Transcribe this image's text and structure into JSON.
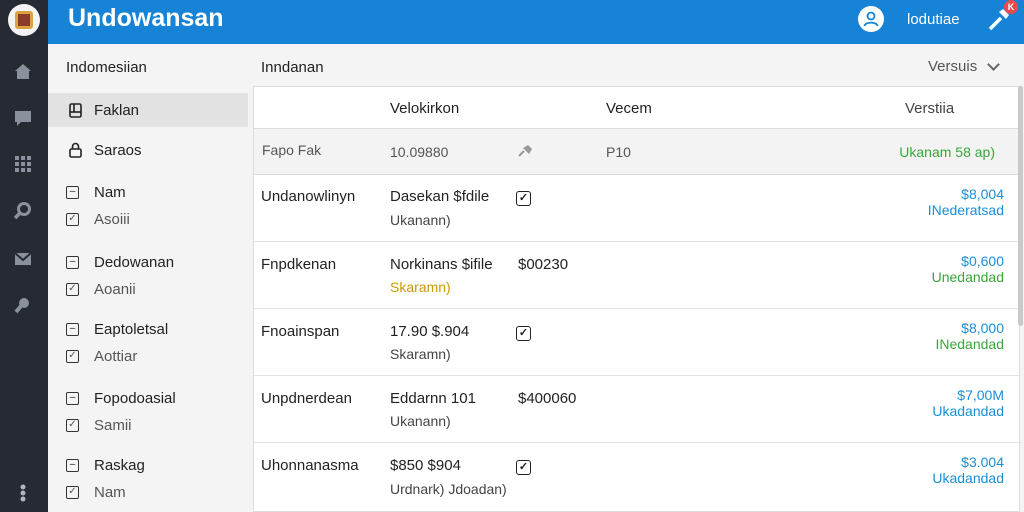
{
  "colors": {
    "header": "#1683d6",
    "rail": "#262a33",
    "link_blue": "#1a8fd8",
    "status_green": "#3aa63a",
    "amber": "#c79a00"
  },
  "app": {
    "title": "Undowansan",
    "user": "lodutiae",
    "notification_badge": "K"
  },
  "rail": {
    "icons": [
      "home-icon",
      "chat-icon",
      "grid-icon",
      "search-icon",
      "mail-icon",
      "settings-icon",
      "more-icon"
    ]
  },
  "sidebar": {
    "heading": "Indomesiian",
    "items": [
      {
        "label": "Faklan",
        "icon": "document-icon",
        "active": true
      },
      {
        "label": "Saraos",
        "icon": "lock-icon",
        "active": false
      }
    ],
    "groups": [
      {
        "label": "Nam",
        "sub": "Asoiii"
      },
      {
        "label": "Dedowanan",
        "sub": "Aoanii"
      },
      {
        "label": "Eaptoletsal",
        "sub": "Aottiar"
      },
      {
        "label": "Fopodoasial",
        "sub": "Samii"
      },
      {
        "label": "Raskag",
        "sub": "Nam"
      }
    ]
  },
  "main": {
    "title": "Inndanan",
    "version_select": "Versuis",
    "columns": {
      "c2": "Velokirkon",
      "c3": "Vecem",
      "c4": "Verstiia"
    },
    "filter_row": {
      "c1": "Fapo Fak",
      "c2": "10.09880",
      "c3": "P10",
      "c4": "Ukanam 58 ap)"
    },
    "rows": [
      {
        "name": "Undanowlinyn",
        "detail": "Dasekan $fdile",
        "sub": "Ukanann)",
        "sub_style": "normal",
        "flag": "check",
        "amount": "$8,004",
        "status": "INederatsad",
        "amount_color": "blue",
        "status_color": "blue"
      },
      {
        "name": "Fnpdkenan",
        "detail": "Norkinans $ifile",
        "sub": "Skaramn)",
        "sub_style": "amber",
        "flag": "$00230",
        "amount": "$0,600",
        "status": "Unedandad",
        "amount_color": "blue",
        "status_color": "green"
      },
      {
        "name": "Fnoainspan",
        "detail": "17.90 $.904",
        "sub": "Skaramn)",
        "sub_style": "normal",
        "flag": "check",
        "amount": "$8,000",
        "status": "INedandad",
        "amount_color": "blue",
        "status_color": "green"
      },
      {
        "name": "Unpdnerdean",
        "detail": "Eddarnn 101",
        "sub": "Ukanann)",
        "sub_style": "normal",
        "flag": "$400060",
        "amount": "$7,00M",
        "status": "Ukadandad",
        "amount_color": "blue",
        "status_color": "blue"
      },
      {
        "name": "Uhonnanasma",
        "detail": "$850 $904",
        "sub": "Urdnark) Jdoadan)",
        "sub_style": "normal",
        "flag": "check",
        "amount": "$3.004",
        "status": "Ukadandad",
        "amount_color": "blue",
        "status_color": "blue"
      }
    ]
  }
}
